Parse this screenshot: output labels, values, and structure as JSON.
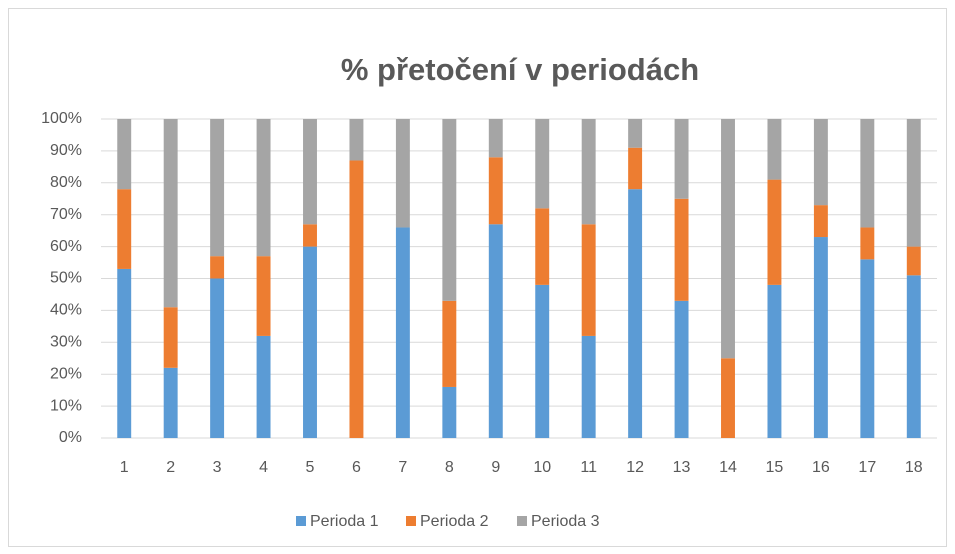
{
  "chart_data": {
    "type": "stacked_bar",
    "title": "% přetočení v periodách",
    "categories": [
      "1",
      "2",
      "3",
      "4",
      "5",
      "6",
      "7",
      "8",
      "9",
      "10",
      "11",
      "12",
      "13",
      "14",
      "15",
      "16",
      "17",
      "18"
    ],
    "series": [
      {
        "name": "Perioda 1",
        "color": "#5b9bd5",
        "values": [
          53,
          22,
          50,
          32,
          60,
          0,
          66,
          16,
          67,
          48,
          32,
          78,
          43,
          0,
          48,
          63,
          56,
          51
        ]
      },
      {
        "name": "Perioda 2",
        "color": "#ed7d31",
        "values": [
          25,
          19,
          7,
          25,
          7,
          87,
          0,
          27,
          21,
          24,
          35,
          13,
          32,
          25,
          33,
          10,
          10,
          9
        ]
      },
      {
        "name": "Perioda 3",
        "color": "#a5a5a5",
        "values": [
          22,
          59,
          43,
          43,
          33,
          13,
          34,
          57,
          12,
          28,
          33,
          9,
          25,
          75,
          19,
          27,
          34,
          40
        ]
      }
    ],
    "ylim": [
      0,
      100
    ],
    "yticks": [
      {
        "value": 0,
        "label": "0%"
      },
      {
        "value": 10,
        "label": "10%"
      },
      {
        "value": 20,
        "label": "20%"
      },
      {
        "value": 30,
        "label": "30%"
      },
      {
        "value": 40,
        "label": "40%"
      },
      {
        "value": 50,
        "label": "50%"
      },
      {
        "value": 60,
        "label": "60%"
      },
      {
        "value": 70,
        "label": "70%"
      },
      {
        "value": 80,
        "label": "80%"
      },
      {
        "value": 90,
        "label": "90%"
      },
      {
        "value": 100,
        "label": "100%"
      }
    ],
    "grid": true,
    "legend": "bottom"
  }
}
